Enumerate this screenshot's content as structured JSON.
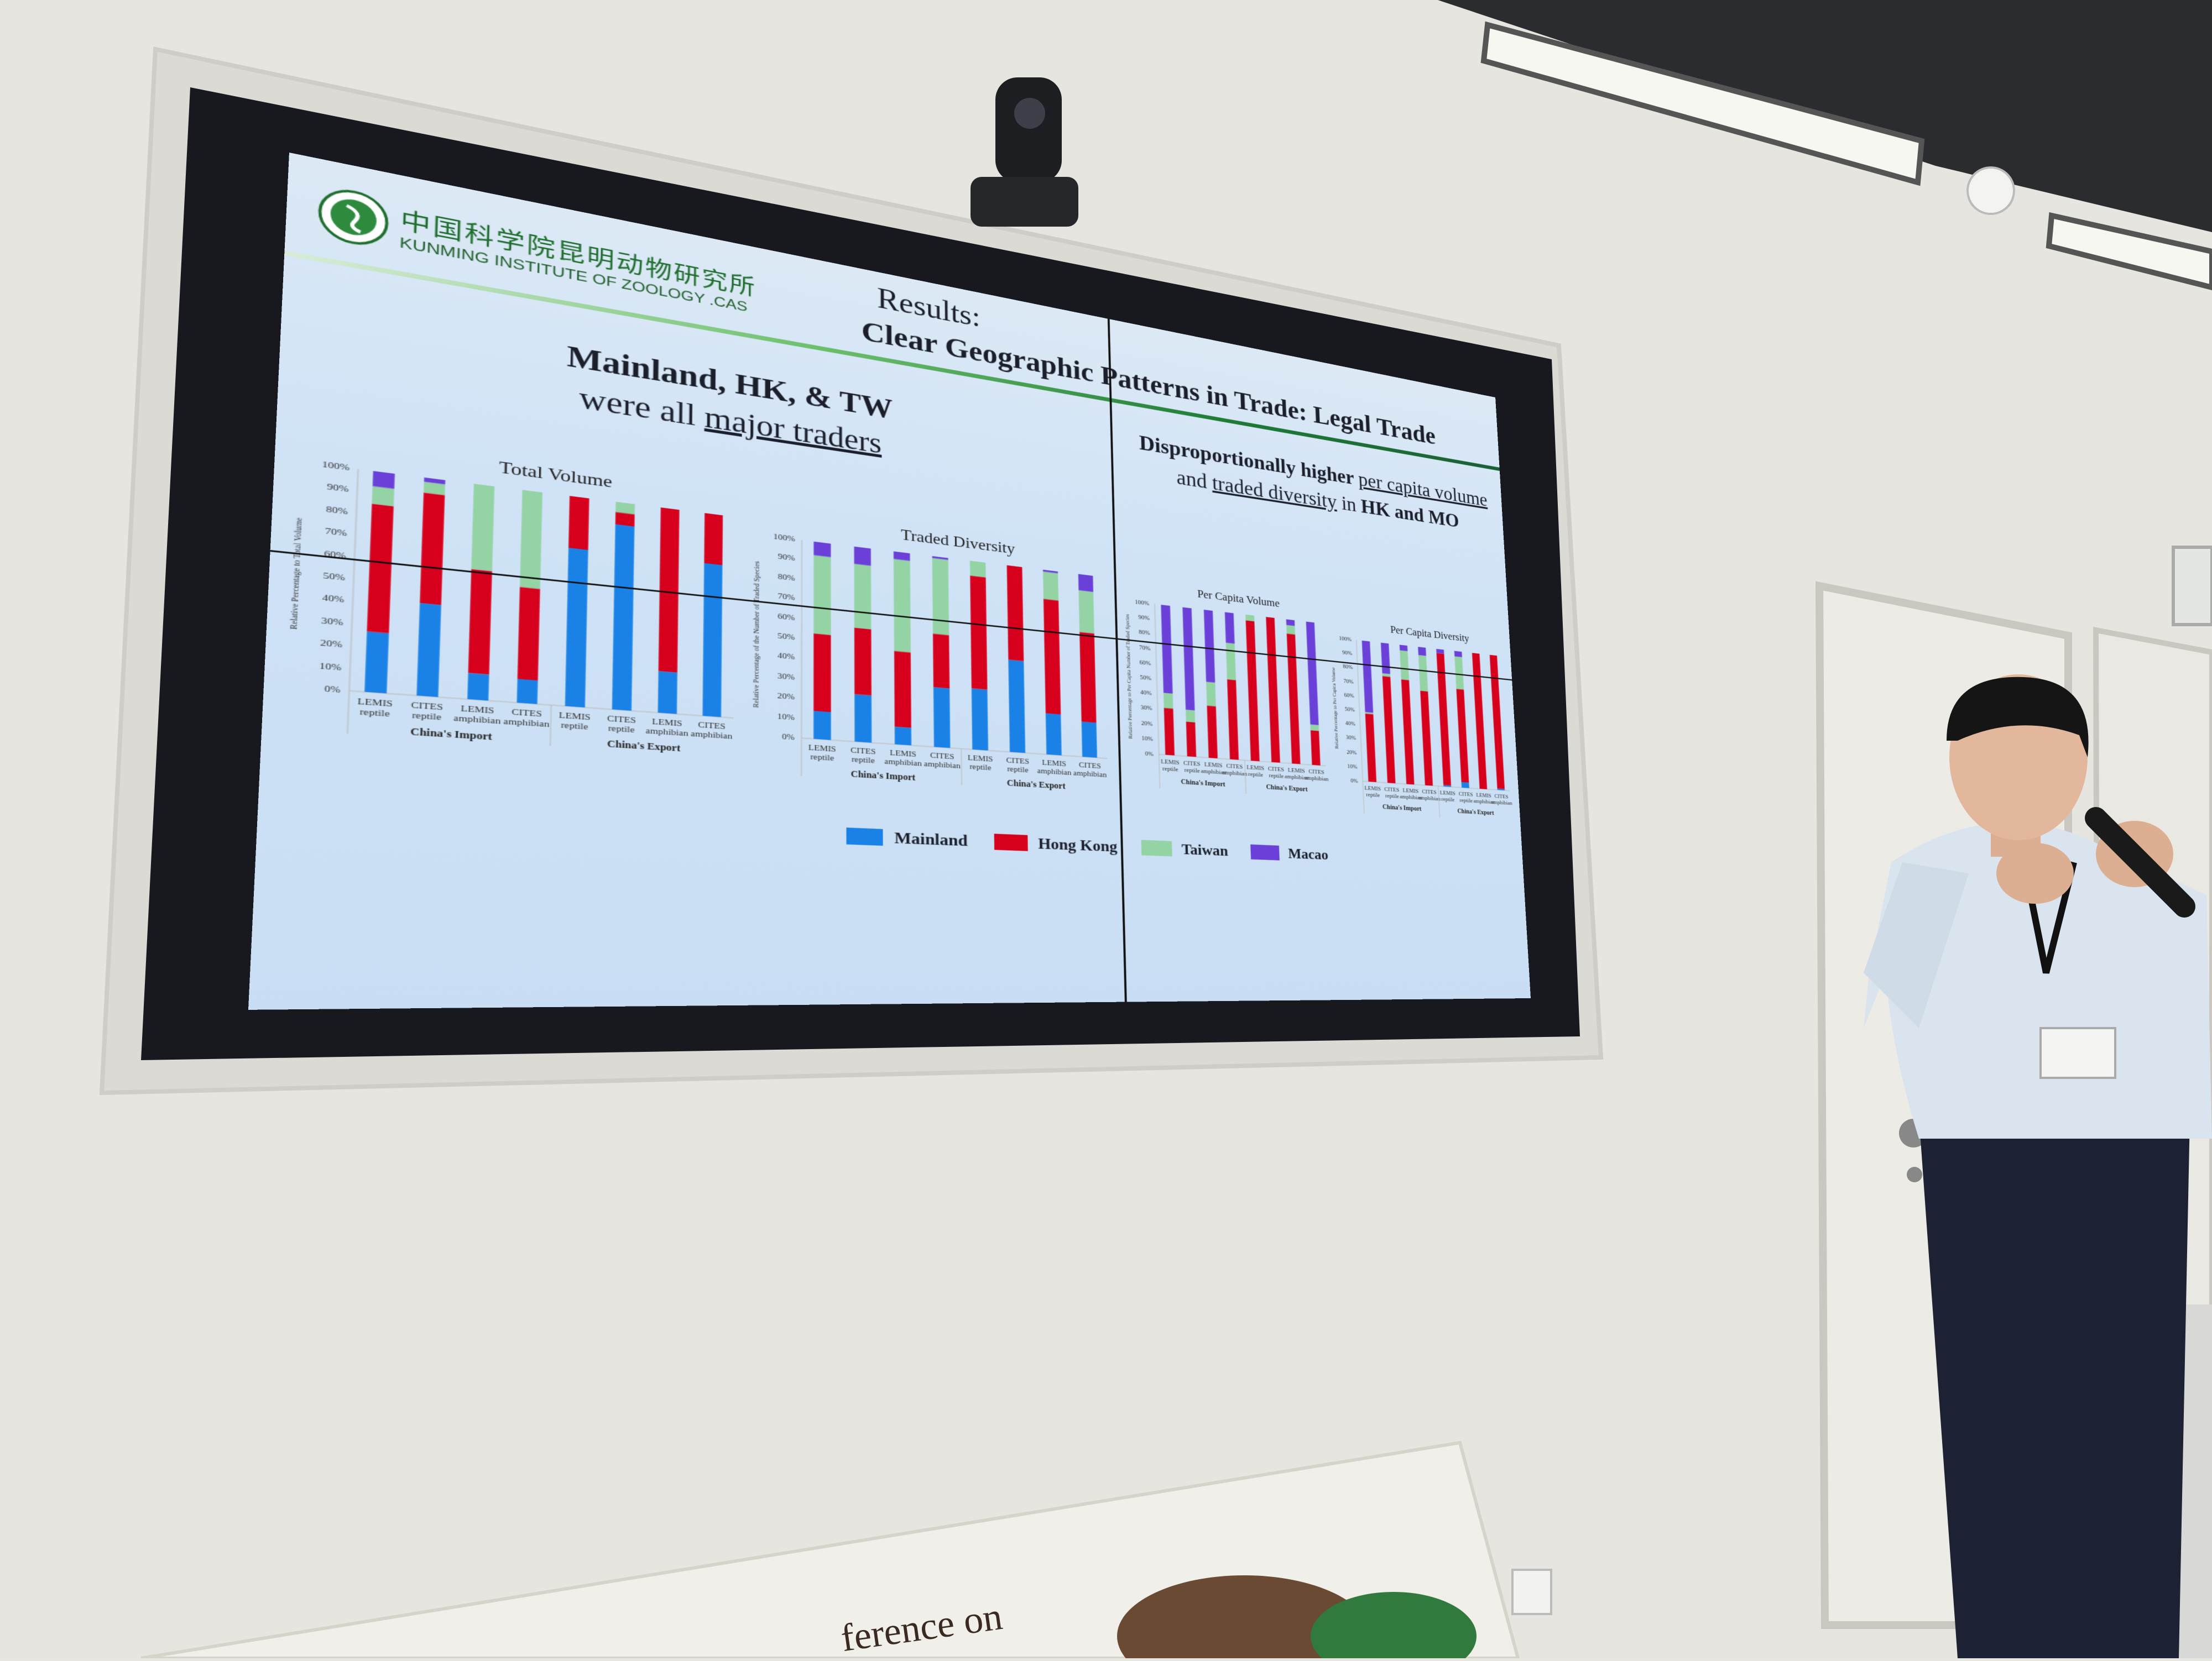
{
  "slide": {
    "logo": {
      "chinese": "中国科学院昆明动物研究所",
      "english": "KUNMING INSTITUTE OF ZOOLOGY .CAS"
    },
    "title_line1": "Results:",
    "title_line2": "Clear Geographic Patterns in Trade: Legal Trade",
    "left_subtitle": {
      "line1": "Mainland, HK, & TW",
      "line2_prefix": "were all ",
      "line2_underlined": "major traders"
    },
    "right_subtitle": {
      "line1_bold": "Disproportionally higher ",
      "line1_underlined": "per capita volume",
      "line2_prefix": "and ",
      "line2_underlined": "traded diversity",
      "line2_mid": " in ",
      "line2_bold": "HK and MO"
    }
  },
  "background_sign_text": "ference on",
  "colors": {
    "Mainland": "#1a82e6",
    "Hong Kong": "#d6001c",
    "Taiwan": "#93d3a4",
    "Macao": "#6a40d8",
    "header_green": "#1e7c35"
  },
  "chart_data": [
    {
      "type": "bar",
      "stacked": true,
      "title": "Total Volume",
      "ylabel": "Relative Percentage to Total Volume",
      "ylim": [
        0,
        100
      ],
      "yticks": [
        "0%",
        "10%",
        "20%",
        "30%",
        "40%",
        "50%",
        "60%",
        "70%",
        "80%",
        "90%",
        "100%"
      ],
      "categories": [
        {
          "source": "LEMIS",
          "taxon": "reptile"
        },
        {
          "source": "CITES",
          "taxon": "reptile"
        },
        {
          "source": "LEMIS",
          "taxon": "amphibian"
        },
        {
          "source": "CITES",
          "taxon": "amphibian"
        },
        {
          "source": "LEMIS",
          "taxon": "reptile"
        },
        {
          "source": "CITES",
          "taxon": "reptile"
        },
        {
          "source": "LEMIS",
          "taxon": "amphibian"
        },
        {
          "source": "CITES",
          "taxon": "amphibian"
        }
      ],
      "groups": [
        "China's Import",
        "China's Export"
      ],
      "series": [
        {
          "name": "Mainland",
          "color": "#1a82e6",
          "values": [
            27,
            42,
            12,
            11,
            75,
            89,
            20,
            75
          ]
        },
        {
          "name": "Hong Kong",
          "color": "#d6001c",
          "values": [
            58,
            51,
            48,
            43,
            25,
            6,
            80,
            25
          ]
        },
        {
          "name": "Taiwan",
          "color": "#93d3a4",
          "values": [
            8,
            5,
            40,
            46,
            0,
            5,
            0,
            0
          ]
        },
        {
          "name": "Macao",
          "color": "#6a40d8",
          "values": [
            7,
            2,
            0,
            0,
            0,
            0,
            0,
            0
          ]
        }
      ]
    },
    {
      "type": "bar",
      "stacked": true,
      "title": "Traded Diversity",
      "ylabel": "Relative Percentage of the Number of Traded Species",
      "ylim": [
        0,
        100
      ],
      "yticks": [
        "0%",
        "10%",
        "20%",
        "30%",
        "40%",
        "50%",
        "60%",
        "70%",
        "80%",
        "90%",
        "100%"
      ],
      "categories": [
        {
          "source": "LEMIS",
          "taxon": "reptile"
        },
        {
          "source": "CITES",
          "taxon": "reptile"
        },
        {
          "source": "LEMIS",
          "taxon": "amphibian"
        },
        {
          "source": "CITES",
          "taxon": "amphibian"
        },
        {
          "source": "LEMIS",
          "taxon": "reptile"
        },
        {
          "source": "CITES",
          "taxon": "reptile"
        },
        {
          "source": "LEMIS",
          "taxon": "amphibian"
        },
        {
          "source": "CITES",
          "taxon": "amphibian"
        }
      ],
      "groups": [
        "China's Import",
        "China's Export"
      ],
      "series": [
        {
          "name": "Mainland",
          "color": "#1a82e6",
          "values": [
            14,
            24,
            9,
            31,
            32,
            49,
            22,
            19
          ]
        },
        {
          "name": "Hong Kong",
          "color": "#d6001c",
          "values": [
            39,
            34,
            39,
            28,
            60,
            51,
            62,
            49
          ]
        },
        {
          "name": "Taiwan",
          "color": "#93d3a4",
          "values": [
            40,
            33,
            48,
            40,
            8,
            0,
            15,
            23
          ]
        },
        {
          "name": "Macao",
          "color": "#6a40d8",
          "values": [
            7,
            9,
            4,
            1,
            0,
            0,
            1,
            9
          ]
        }
      ]
    },
    {
      "type": "bar",
      "stacked": true,
      "title": "Per Capita Volume",
      "ylabel": "Relative Percentage to Per Capita Number of Traded Species",
      "ylim": [
        0,
        100
      ],
      "yticks": [
        "0%",
        "10%",
        "20%",
        "30%",
        "40%",
        "50%",
        "60%",
        "70%",
        "80%",
        "90%",
        "100%"
      ],
      "categories": [
        {
          "source": "LEMIS",
          "taxon": "reptile"
        },
        {
          "source": "CITES",
          "taxon": "reptile"
        },
        {
          "source": "LEMIS",
          "taxon": "amphibian"
        },
        {
          "source": "CITES",
          "taxon": "amphibian"
        },
        {
          "source": "LEMIS",
          "taxon": "reptile"
        },
        {
          "source": "CITES",
          "taxon": "reptile"
        },
        {
          "source": "LEMIS",
          "taxon": "amphibian"
        },
        {
          "source": "CITES",
          "taxon": "amphibian"
        }
      ],
      "groups": [
        "China's Import",
        "China's Export"
      ],
      "series": [
        {
          "name": "Mainland",
          "color": "#1a82e6",
          "values": [
            0,
            0,
            0,
            0,
            0,
            0,
            0,
            0
          ]
        },
        {
          "name": "Hong Kong",
          "color": "#d6001c",
          "values": [
            31,
            23,
            35,
            54,
            96,
            100,
            90,
            24
          ]
        },
        {
          "name": "Taiwan",
          "color": "#93d3a4",
          "values": [
            10,
            8,
            16,
            25,
            4,
            0,
            6,
            4
          ]
        },
        {
          "name": "Macao",
          "color": "#6a40d8",
          "values": [
            59,
            69,
            49,
            21,
            0,
            0,
            4,
            72
          ]
        }
      ]
    },
    {
      "type": "bar",
      "stacked": true,
      "title": "Per Capita Diversity",
      "ylabel": "Relative Percentage to Per Capica Volume",
      "ylim": [
        0,
        100
      ],
      "yticks": [
        "0%",
        "10%",
        "20%",
        "30%",
        "40%",
        "50%",
        "60%",
        "70%",
        "80%",
        "90%",
        "100%"
      ],
      "categories": [
        {
          "source": "LEMIS",
          "taxon": "reptile"
        },
        {
          "source": "CITES",
          "taxon": "reptile"
        },
        {
          "source": "LEMIS",
          "taxon": "amphibian"
        },
        {
          "source": "CITES",
          "taxon": "amphibian"
        },
        {
          "source": "LEMIS",
          "taxon": "reptile"
        },
        {
          "source": "CITES",
          "taxon": "reptile"
        },
        {
          "source": "LEMIS",
          "taxon": "amphibian"
        },
        {
          "source": "CITES",
          "taxon": "amphibian"
        }
      ],
      "groups": [
        "China's Import",
        "China's Export"
      ],
      "series": [
        {
          "name": "Mainland",
          "color": "#1a82e6",
          "values": [
            0,
            0,
            0,
            0,
            1,
            4,
            0,
            1
          ]
        },
        {
          "name": "Hong Kong",
          "color": "#d6001c",
          "values": [
            48,
            76,
            75,
            68,
            96,
            68,
            100,
            99
          ]
        },
        {
          "name": "Taiwan",
          "color": "#93d3a4",
          "values": [
            1,
            2,
            21,
            26,
            0,
            24,
            0,
            0
          ]
        },
        {
          "name": "Macao",
          "color": "#6a40d8",
          "values": [
            51,
            22,
            4,
            6,
            3,
            4,
            0,
            0
          ]
        }
      ]
    }
  ]
}
